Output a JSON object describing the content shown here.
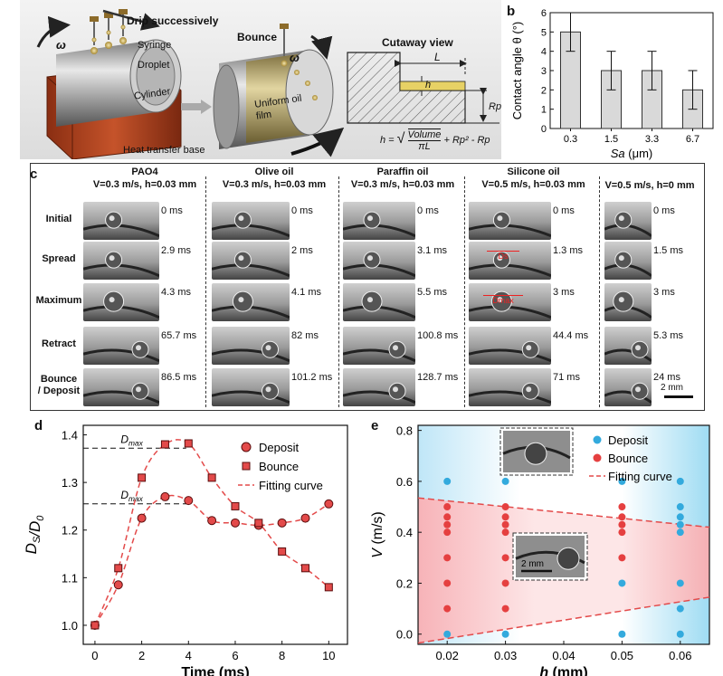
{
  "panel_a": {
    "label": "a",
    "drip": "Drip successively",
    "omega": "ω",
    "syringe": "Syringe",
    "droplet": "Droplet",
    "cylinder": "Cylinder",
    "heat_base": "Heat transfer base",
    "bounce": "Bounce",
    "oil_film": "Uniform oil film",
    "cutaway": "Cutaway view",
    "L": "L",
    "h": "h",
    "Rp": "Rp",
    "formula_lhs": "h =",
    "formula_num": "Volume",
    "formula_den": "πL",
    "formula_tail": "+ Rp² - Rp"
  },
  "panel_b": {
    "label": "b",
    "chart_data": {
      "type": "bar",
      "categories": [
        "0.3",
        "1.5",
        "3.3",
        "6.7"
      ],
      "values": [
        5,
        3,
        3,
        2
      ],
      "errors": [
        1,
        1,
        1,
        1
      ],
      "xlabel": "Sa (μm)",
      "ylabel": "Contact angle θ (°)",
      "ylim": [
        0,
        6
      ],
      "yticks": [
        0,
        1,
        2,
        3,
        4,
        5,
        6
      ]
    }
  },
  "panel_c": {
    "label": "c",
    "columns": [
      {
        "name": "PAO4",
        "cond": "V=0.3 m/s, h=0.03 mm",
        "times": [
          "0 ms",
          "2.9 ms",
          "4.3 ms",
          "65.7 ms",
          "86.5 ms"
        ]
      },
      {
        "name": "Olive oil",
        "cond": "V=0.3 m/s, h=0.03 mm",
        "times": [
          "0 ms",
          "2 ms",
          "4.1 ms",
          "82 ms",
          "101.2 ms"
        ]
      },
      {
        "name": "Paraffin oil",
        "cond": "V=0.3 m/s, h=0.03 mm",
        "times": [
          "0 ms",
          "3.1 ms",
          "5.5 ms",
          "100.8 ms",
          "128.7 ms"
        ]
      },
      {
        "name": "Silicone oil",
        "cond": "V=0.5 m/s, h=0.03 mm",
        "times": [
          "0 ms",
          "1.3 ms",
          "3 ms",
          "44.4 ms",
          "71 ms"
        ]
      },
      {
        "name": "",
        "cond": "V=0.5 m/s, h=0 mm",
        "times": [
          "0 ms",
          "1.5 ms",
          "3 ms",
          "5.3 ms",
          "24 ms"
        ]
      }
    ],
    "rows": [
      "Initial",
      "Spread",
      "Maximum",
      "Retract",
      "Bounce / Deposit"
    ],
    "ds_label": "Ds",
    "dmax_label": "Dmax",
    "scale": "2 mm"
  },
  "panel_d": {
    "label": "d",
    "chart_data": {
      "type": "scatter",
      "xlabel": "Time (ms)",
      "ylabel": "DS/D0",
      "xlim": [
        -0.5,
        10.8
      ],
      "ylim": [
        0.96,
        1.42
      ],
      "xticks": [
        0,
        2,
        4,
        6,
        8,
        10
      ],
      "yticks": [
        1.0,
        1.1,
        1.2,
        1.3,
        1.4
      ],
      "series": [
        {
          "name": "Deposit",
          "marker": "circle",
          "x": [
            0,
            1,
            2,
            3,
            4,
            5,
            6,
            7,
            8,
            9,
            10
          ],
          "y": [
            1.0,
            1.085,
            1.225,
            1.27,
            1.262,
            1.22,
            1.215,
            1.21,
            1.215,
            1.225,
            1.255
          ]
        },
        {
          "name": "Bounce",
          "marker": "square",
          "x": [
            0,
            1,
            2,
            3,
            4,
            5,
            6,
            7,
            8,
            9,
            10
          ],
          "y": [
            1.0,
            1.12,
            1.31,
            1.38,
            1.382,
            1.31,
            1.25,
            1.215,
            1.155,
            1.12,
            1.08
          ]
        },
        {
          "name": "Fitting curve",
          "style": "dashed"
        }
      ],
      "annotations": [
        "Dmax",
        "Dmax"
      ],
      "dmax_levels": [
        1.372,
        1.255
      ]
    }
  },
  "panel_e": {
    "label": "e",
    "chart_data": {
      "type": "scatter",
      "xlabel": "h (mm)",
      "ylabel": "V (m/s)",
      "xlim": [
        0.015,
        0.065
      ],
      "ylim": [
        -0.04,
        0.82
      ],
      "xticks": [
        0.02,
        0.03,
        0.04,
        0.05,
        0.06
      ],
      "yticks": [
        0.0,
        0.2,
        0.4,
        0.6,
        0.8
      ],
      "series": [
        {
          "name": "Deposit",
          "color": "#33aadd",
          "points": [
            [
              0.02,
              0.0
            ],
            [
              0.02,
              0.6
            ],
            [
              0.03,
              0.0
            ],
            [
              0.03,
              0.6
            ],
            [
              0.05,
              0.0
            ],
            [
              0.05,
              0.2
            ],
            [
              0.05,
              0.6
            ],
            [
              0.06,
              0.0
            ],
            [
              0.06,
              0.1
            ],
            [
              0.06,
              0.2
            ],
            [
              0.06,
              0.4
            ],
            [
              0.06,
              0.43
            ],
            [
              0.06,
              0.46
            ],
            [
              0.06,
              0.5
            ],
            [
              0.06,
              0.6
            ]
          ]
        },
        {
          "name": "Bounce",
          "color": "#e54040",
          "points": [
            [
              0.02,
              0.1
            ],
            [
              0.02,
              0.2
            ],
            [
              0.02,
              0.3
            ],
            [
              0.02,
              0.4
            ],
            [
              0.02,
              0.43
            ],
            [
              0.02,
              0.46
            ],
            [
              0.02,
              0.5
            ],
            [
              0.03,
              0.1
            ],
            [
              0.03,
              0.2
            ],
            [
              0.03,
              0.3
            ],
            [
              0.03,
              0.4
            ],
            [
              0.03,
              0.43
            ],
            [
              0.03,
              0.46
            ],
            [
              0.03,
              0.5
            ],
            [
              0.05,
              0.3
            ],
            [
              0.05,
              0.4
            ],
            [
              0.05,
              0.43
            ],
            [
              0.05,
              0.46
            ],
            [
              0.05,
              0.5
            ]
          ]
        },
        {
          "name": "Fitting curve",
          "style": "dashed",
          "lines": [
            [
              [
                0.015,
                0.535
              ],
              [
                0.065,
                0.42
              ]
            ],
            [
              [
                0.015,
                -0.035
              ],
              [
                0.065,
                0.145
              ]
            ]
          ]
        }
      ],
      "scale": "2 mm"
    }
  }
}
